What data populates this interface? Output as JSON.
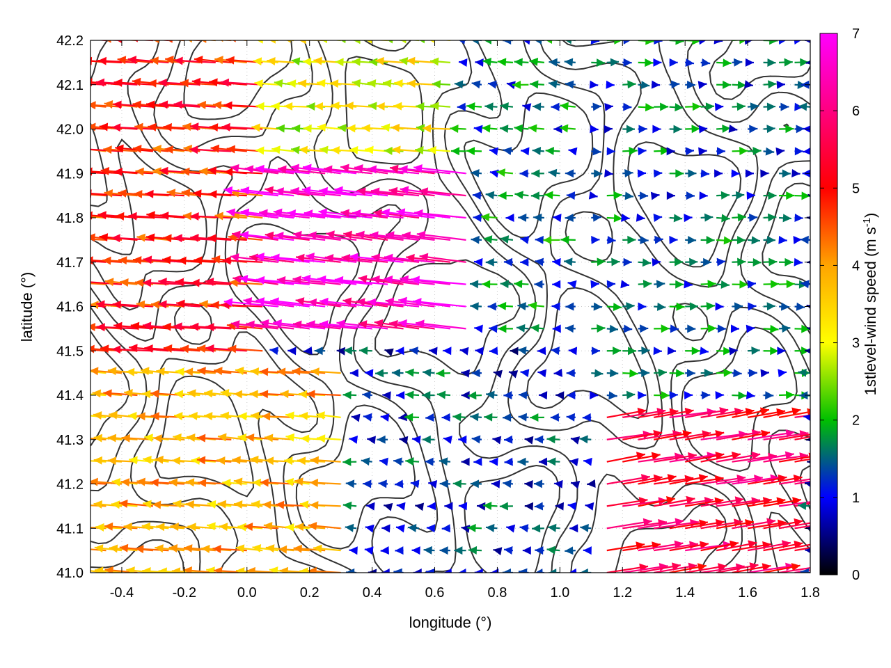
{
  "chart_data": {
    "type": "vector-field",
    "xlabel": "longitude (°)",
    "ylabel": "latitude (°)",
    "xlim": [
      -0.5,
      1.8
    ],
    "ylim": [
      41.0,
      42.2
    ],
    "x_ticks": [
      "-0.4",
      "-0.2",
      "0.0",
      "0.2",
      "0.4",
      "0.6",
      "0.8",
      "1.0",
      "1.2",
      "1.4",
      "1.6",
      "1.8"
    ],
    "y_ticks": [
      "41.0",
      "41.1",
      "41.2",
      "41.3",
      "41.4",
      "41.5",
      "41.6",
      "41.7",
      "41.8",
      "41.9",
      "42.0",
      "42.1",
      "42.2"
    ],
    "colorbar": {
      "label_main": "1stlevel-wind speed (m s",
      "label_sup": "-1",
      "label_end": ")",
      "range": [
        0,
        7
      ],
      "ticks": [
        "0",
        "1",
        "2",
        "3",
        "4",
        "5",
        "6",
        "7"
      ],
      "colors": [
        "#000000",
        "#0000ff",
        "#00c000",
        "#ffff00",
        "#ffa500",
        "#ff0000",
        "#ff00ff"
      ]
    },
    "grid": true,
    "regions": [
      {
        "lon": [
          -0.5,
          0.05
        ],
        "lat": [
          41.45,
          42.2
        ],
        "u": -4.8,
        "v": 0.35,
        "note": "westward flow"
      },
      {
        "lon": [
          -0.1,
          0.75
        ],
        "lat": [
          41.5,
          41.9
        ],
        "u": -6.5,
        "v": 0.75,
        "note": "strong westward jet"
      },
      {
        "lon": [
          0.05,
          0.65
        ],
        "lat": [
          41.9,
          42.2
        ],
        "u": -3.0,
        "v": 0.2
      },
      {
        "lon": [
          0.65,
          1.1
        ],
        "lat": [
          41.5,
          42.2
        ],
        "u": -1.5,
        "v": 0.1
      },
      {
        "lon": [
          1.1,
          1.8
        ],
        "lat": [
          41.35,
          42.2
        ],
        "u": 1.4,
        "v": 0.0,
        "note": "weak eastward flow"
      },
      {
        "lon": [
          -0.5,
          0.3
        ],
        "lat": [
          41.0,
          41.45
        ],
        "u": -3.8,
        "v": 0.3
      },
      {
        "lon": [
          0.3,
          1.15
        ],
        "lat": [
          41.0,
          41.45
        ],
        "u": -1.2,
        "v": 0.05
      },
      {
        "lon": [
          1.15,
          1.8
        ],
        "lat": [
          41.0,
          41.35
        ],
        "u": 5.5,
        "v": 0.9,
        "note": "strong eastward flow"
      }
    ],
    "contour_levels": 4
  }
}
